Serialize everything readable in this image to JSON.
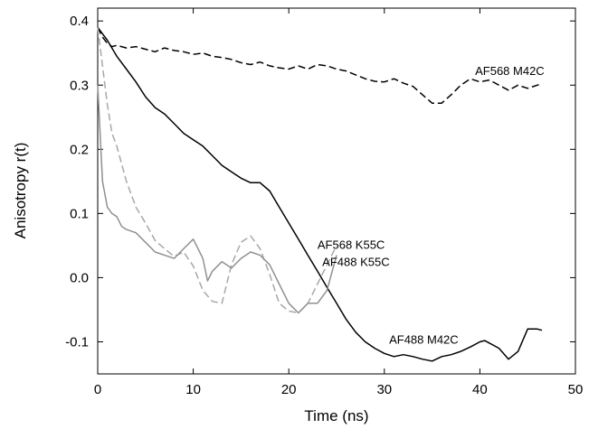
{
  "chart_data": {
    "type": "line",
    "xlabel": "Time (ns)",
    "ylabel": "Anisotropy  r(t)",
    "xlim": [
      0,
      50
    ],
    "ylim": [
      -0.15,
      0.42
    ],
    "xticks": [
      0,
      10,
      20,
      30,
      40,
      50
    ],
    "yticks": [
      -0.1,
      0.0,
      0.1,
      0.2,
      0.3,
      0.4
    ],
    "ytick_labels": [
      "-0.1",
      "0.0",
      "0.1",
      "0.2",
      "0.3",
      "0.4"
    ],
    "grid": false,
    "series": [
      {
        "name": "AF568 M42C",
        "color": "#000000",
        "dash": "dashed",
        "label_at": [
          39.5,
          0.323
        ],
        "x": [
          0,
          0.5,
          1,
          1.5,
          2,
          3,
          4,
          5,
          6,
          7,
          8,
          9,
          10,
          11,
          12,
          13,
          14,
          15,
          16,
          17,
          18,
          19,
          20,
          21,
          22,
          23,
          24,
          25,
          26,
          27,
          28,
          29,
          30,
          31,
          32,
          33,
          34,
          35,
          36,
          37,
          38,
          39,
          40,
          41,
          42,
          43,
          44,
          45,
          46,
          46.5
        ],
        "y": [
          0.39,
          0.375,
          0.365,
          0.36,
          0.362,
          0.358,
          0.36,
          0.356,
          0.352,
          0.358,
          0.354,
          0.352,
          0.348,
          0.35,
          0.345,
          0.343,
          0.34,
          0.335,
          0.332,
          0.336,
          0.33,
          0.327,
          0.325,
          0.33,
          0.325,
          0.332,
          0.33,
          0.325,
          0.322,
          0.316,
          0.31,
          0.306,
          0.305,
          0.31,
          0.303,
          0.298,
          0.285,
          0.272,
          0.272,
          0.285,
          0.3,
          0.31,
          0.305,
          0.308,
          0.3,
          0.292,
          0.3,
          0.295,
          0.3,
          0.302
        ]
      },
      {
        "name": "AF488 M42C",
        "color": "#000000",
        "dash": "solid",
        "label_at": [
          30.5,
          -0.096
        ],
        "x": [
          0,
          0.5,
          1,
          2,
          3,
          4,
          5,
          6,
          7,
          8,
          9,
          10,
          11,
          12,
          13,
          14,
          15,
          16,
          17,
          18,
          19,
          20,
          21,
          22,
          23,
          24,
          25,
          26,
          27,
          28,
          29,
          30,
          31,
          32,
          33,
          34,
          35,
          36,
          37,
          38,
          39,
          40,
          40.5,
          41,
          42,
          43,
          44,
          45,
          46,
          46.5
        ],
        "y": [
          0.39,
          0.38,
          0.37,
          0.345,
          0.325,
          0.305,
          0.282,
          0.265,
          0.255,
          0.24,
          0.225,
          0.215,
          0.205,
          0.19,
          0.175,
          0.165,
          0.155,
          0.148,
          0.148,
          0.135,
          0.11,
          0.085,
          0.06,
          0.035,
          0.01,
          -0.015,
          -0.04,
          -0.065,
          -0.085,
          -0.1,
          -0.11,
          -0.118,
          -0.123,
          -0.12,
          -0.123,
          -0.127,
          -0.13,
          -0.123,
          -0.12,
          -0.115,
          -0.108,
          -0.1,
          -0.098,
          -0.102,
          -0.11,
          -0.127,
          -0.115,
          -0.08,
          -0.08,
          -0.082
        ]
      },
      {
        "name": "AF568 K55C",
        "color": "#a8a8a8",
        "dash": "dashed",
        "label_at": [
          23,
          0.052
        ],
        "x": [
          0,
          0.5,
          1,
          1.5,
          2,
          3,
          4,
          5,
          6,
          7,
          8,
          9,
          10,
          11,
          12,
          13,
          14,
          15,
          16,
          17,
          18,
          19,
          20,
          21,
          22,
          23,
          24,
          25
        ],
        "y": [
          0.39,
          0.33,
          0.27,
          0.225,
          0.205,
          0.15,
          0.11,
          0.085,
          0.058,
          0.045,
          0.033,
          0.04,
          0.018,
          -0.02,
          -0.037,
          -0.04,
          0.02,
          0.055,
          0.065,
          0.045,
          0.005,
          -0.04,
          -0.052,
          -0.055,
          -0.04,
          -0.01,
          0.02,
          0.05
        ]
      },
      {
        "name": "AF488 K55C",
        "color": "#909090",
        "dash": "solid",
        "label_at": [
          23.5,
          0.025
        ],
        "x": [
          0,
          0.5,
          1,
          1.5,
          2,
          2.5,
          3,
          4,
          5,
          6,
          7,
          8,
          9,
          10,
          11,
          11.5,
          12,
          13,
          14,
          15,
          16,
          17,
          18,
          19,
          20,
          21,
          22,
          23,
          24,
          25
        ],
        "y": [
          0.3,
          0.15,
          0.11,
          0.1,
          0.095,
          0.08,
          0.075,
          0.07,
          0.055,
          0.04,
          0.035,
          0.03,
          0.045,
          0.06,
          0.03,
          -0.005,
          0.01,
          0.025,
          0.015,
          0.03,
          0.04,
          0.035,
          0.02,
          -0.01,
          -0.04,
          -0.055,
          -0.04,
          -0.04,
          -0.02,
          0.035
        ]
      }
    ]
  }
}
